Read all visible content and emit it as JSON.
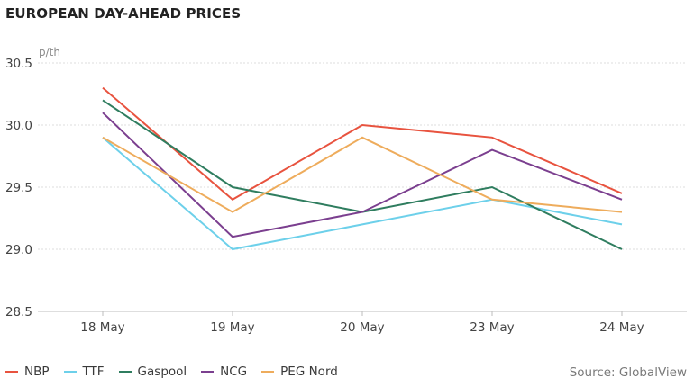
{
  "chart_data": {
    "type": "line",
    "title": "EUROPEAN DAY-AHEAD PRICES",
    "ylabel": "p/th",
    "categories": [
      "18 May",
      "19 May",
      "20 May",
      "23 May",
      "24 May"
    ],
    "ylim": [
      28.5,
      30.5
    ],
    "yticks": [
      "28.5",
      "29.0",
      "29.5",
      "30.0",
      "30.5"
    ],
    "grid": true,
    "legend_position": "bottom-left",
    "series": [
      {
        "name": "NBP",
        "color": "#e8533f",
        "values": [
          30.3,
          29.4,
          30.0,
          29.9,
          29.45
        ]
      },
      {
        "name": "TTF",
        "color": "#6dd0ea",
        "values": [
          29.9,
          29.0,
          29.2,
          29.4,
          29.2
        ]
      },
      {
        "name": "Gaspool",
        "color": "#2f7d5f",
        "values": [
          30.2,
          29.5,
          29.3,
          29.5,
          29.0
        ]
      },
      {
        "name": "NCG",
        "color": "#7b3f8f",
        "values": [
          30.1,
          29.1,
          29.3,
          29.8,
          29.4
        ]
      },
      {
        "name": "PEG Nord",
        "color": "#eeac5c",
        "values": [
          29.9,
          29.3,
          29.9,
          29.4,
          29.3
        ]
      }
    ],
    "source": "Source: GlobalView"
  }
}
